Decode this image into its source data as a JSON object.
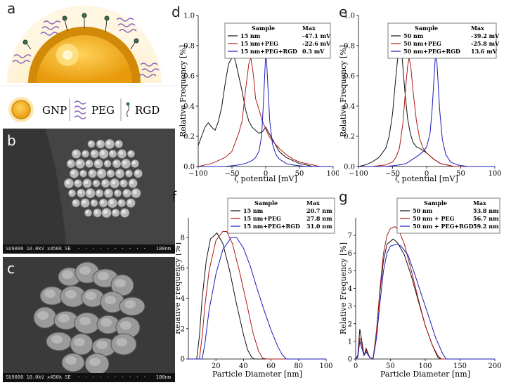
{
  "panel_labels": {
    "a": "a",
    "b": "b",
    "c": "c",
    "d": "d",
    "e": "e",
    "f": "f",
    "g": "g"
  },
  "schematic": {
    "legend": [
      {
        "label": "GNP"
      },
      {
        "label": "PEG"
      },
      {
        "label": "RGD"
      }
    ],
    "colors": {
      "gold": "#f2b21c",
      "gold_dark": "#d08a08",
      "peg": "#8b66b8",
      "glow": "#fbe6b0"
    }
  },
  "sem_images": [
    {
      "caption": "SU9000 10.0kV x450k SE",
      "scale": "100nm"
    },
    {
      "caption": "SU9000 10.0kV x450k SE",
      "scale": "100nm"
    }
  ],
  "chart_data": [
    {
      "id": "d",
      "type": "line",
      "xlabel": "ζ potential [mV]",
      "ylabel": "Relative Frequency [%]",
      "xlim": [
        -100,
        100
      ],
      "ylim": [
        0,
        1.0
      ],
      "xticks": [
        "−100",
        "−50",
        "0",
        "50",
        "100"
      ],
      "yticks": [
        "0.0",
        "0.2",
        "0.4",
        "0.6",
        "0.8",
        "1.0"
      ],
      "legend_header": [
        "Sample",
        "Max"
      ],
      "series": [
        {
          "name": "15 nm",
          "max": "-47.1 mV",
          "color": "#111111",
          "x": [
            -100,
            -95,
            -90,
            -85,
            -80,
            -75,
            -70,
            -65,
            -60,
            -55,
            -50,
            -47,
            -44,
            -40,
            -35,
            -30,
            -25,
            -20,
            -15,
            -10,
            -5,
            0,
            5,
            10,
            15,
            20,
            30,
            40,
            50,
            60,
            70,
            80,
            90,
            100
          ],
          "y": [
            0.14,
            0.2,
            0.26,
            0.29,
            0.26,
            0.24,
            0.3,
            0.4,
            0.55,
            0.68,
            0.72,
            0.73,
            0.68,
            0.6,
            0.5,
            0.38,
            0.3,
            0.26,
            0.24,
            0.22,
            0.23,
            0.26,
            0.22,
            0.18,
            0.14,
            0.1,
            0.06,
            0.04,
            0.02,
            0.01,
            0.0,
            0.0,
            0.0,
            0.0
          ]
        },
        {
          "name": "15 nm+PEG",
          "max": "-22.6 mV",
          "color": "#b01818",
          "x": [
            -100,
            -90,
            -80,
            -70,
            -60,
            -50,
            -45,
            -40,
            -35,
            -30,
            -25,
            -22,
            -18,
            -15,
            -10,
            -5,
            0,
            5,
            10,
            20,
            30,
            40,
            50,
            60,
            70,
            80,
            90,
            100
          ],
          "y": [
            0.0,
            0.01,
            0.02,
            0.04,
            0.06,
            0.1,
            0.16,
            0.22,
            0.3,
            0.5,
            0.68,
            0.72,
            0.6,
            0.45,
            0.38,
            0.3,
            0.25,
            0.2,
            0.17,
            0.12,
            0.08,
            0.05,
            0.03,
            0.02,
            0.01,
            0.0,
            0.0,
            0.0
          ]
        },
        {
          "name": "15 nm+PEG+RGD",
          "max": "0.3 mV",
          "color": "#1a1ab8",
          "x": [
            -100,
            -60,
            -40,
            -30,
            -20,
            -15,
            -10,
            -6,
            -3,
            0,
            0.3,
            3,
            6,
            10,
            15,
            20,
            30,
            40,
            60,
            100
          ],
          "y": [
            0.0,
            0.0,
            0.01,
            0.02,
            0.04,
            0.06,
            0.1,
            0.2,
            0.45,
            0.75,
            0.79,
            0.55,
            0.3,
            0.15,
            0.08,
            0.05,
            0.02,
            0.01,
            0.0,
            0.0
          ]
        }
      ]
    },
    {
      "id": "e",
      "type": "line",
      "xlabel": "ζ potential [mV]",
      "ylabel": "Relative Frequency [%]",
      "xlim": [
        -100,
        100
      ],
      "ylim": [
        0,
        1.0
      ],
      "xticks": [
        "−100",
        "−50",
        "0",
        "50",
        "100"
      ],
      "yticks": [
        "0.0",
        "0.2",
        "0.4",
        "0.6",
        "0.8",
        "1.0"
      ],
      "legend_header": [
        "Sample",
        "Max"
      ],
      "series": [
        {
          "name": "50 nm",
          "max": "-39.2 mV",
          "color": "#111111",
          "x": [
            -100,
            -90,
            -80,
            -70,
            -60,
            -55,
            -50,
            -45,
            -42,
            -39,
            -36,
            -32,
            -28,
            -24,
            -20,
            -15,
            -10,
            0,
            10,
            20,
            30,
            40,
            60,
            100
          ],
          "y": [
            0.0,
            0.01,
            0.03,
            0.06,
            0.12,
            0.2,
            0.35,
            0.6,
            0.74,
            0.8,
            0.72,
            0.5,
            0.32,
            0.22,
            0.16,
            0.13,
            0.12,
            0.09,
            0.05,
            0.02,
            0.01,
            0.0,
            0.0,
            0.0
          ]
        },
        {
          "name": "50 nm+PEG",
          "max": "-25.8 mV",
          "color": "#b01818",
          "x": [
            -100,
            -80,
            -60,
            -50,
            -45,
            -40,
            -35,
            -30,
            -28,
            -25.8,
            -23,
            -20,
            -15,
            -10,
            -5,
            0,
            10,
            20,
            30,
            40,
            60,
            100
          ],
          "y": [
            0.0,
            0.0,
            0.01,
            0.03,
            0.06,
            0.12,
            0.28,
            0.56,
            0.66,
            0.72,
            0.65,
            0.5,
            0.3,
            0.18,
            0.12,
            0.09,
            0.05,
            0.02,
            0.01,
            0.0,
            0.0,
            0.0
          ]
        },
        {
          "name": "50 nm+PEG+RGD",
          "max": "13.6 mV",
          "color": "#1a1ab8",
          "x": [
            -100,
            -60,
            -40,
            -30,
            -20,
            -10,
            -5,
            0,
            5,
            8,
            11,
            13.6,
            16,
            19,
            23,
            28,
            35,
            45,
            60,
            80,
            100
          ],
          "y": [
            0.0,
            0.0,
            0.01,
            0.02,
            0.05,
            0.08,
            0.1,
            0.13,
            0.22,
            0.38,
            0.6,
            0.79,
            0.62,
            0.38,
            0.18,
            0.08,
            0.03,
            0.01,
            0.0,
            0.0,
            0.0
          ]
        }
      ]
    },
    {
      "id": "f",
      "type": "line",
      "xlabel": "Particle Diameter [nm]",
      "ylabel": "Relative Frequency [%]",
      "xlim": [
        0,
        100
      ],
      "ylim": [
        0,
        9.3
      ],
      "xticks": [
        "20",
        "40",
        "60",
        "80",
        "100"
      ],
      "yticks": [
        "0",
        "2",
        "4",
        "6",
        "8"
      ],
      "legend_header": [
        "Sample",
        "Max"
      ],
      "series": [
        {
          "name": "15 nm",
          "max": "20.7 nm",
          "color": "#111111",
          "x": [
            0,
            6,
            8,
            10,
            13,
            16,
            20.7,
            25,
            30,
            35,
            40,
            43,
            46,
            48,
            52,
            100
          ],
          "y": [
            0,
            0,
            1.5,
            4.0,
            6.5,
            7.9,
            8.3,
            7.6,
            5.8,
            3.6,
            1.6,
            0.6,
            0.1,
            0,
            0,
            0
          ]
        },
        {
          "name": "15 nm+PEG",
          "max": "27.8 nm",
          "color": "#b01818",
          "x": [
            0,
            8,
            10,
            12,
            15,
            20,
            25,
            27.8,
            32,
            37,
            42,
            47,
            51,
            54,
            57,
            100
          ],
          "y": [
            0,
            0,
            1.5,
            3.5,
            5.8,
            7.8,
            8.4,
            8.4,
            7.6,
            5.8,
            3.8,
            1.7,
            0.5,
            0.05,
            0,
            0
          ]
        },
        {
          "name": "15 nm+PEG+RGD",
          "max": "31.0 nm",
          "color": "#1a1ab8",
          "x": [
            0,
            10,
            12,
            15,
            20,
            25,
            31,
            35,
            40,
            45,
            50,
            55,
            60,
            65,
            68,
            71,
            100
          ],
          "y": [
            0,
            0,
            1.0,
            3.2,
            5.6,
            7.2,
            8.0,
            8.0,
            7.3,
            6.1,
            4.6,
            3.2,
            1.9,
            0.8,
            0.3,
            0,
            0
          ]
        }
      ]
    },
    {
      "id": "g",
      "type": "line",
      "xlabel": "Particle Diameter [nm]",
      "ylabel": "Relative Frequency [%]",
      "xlim": [
        0,
        200
      ],
      "ylim": [
        0,
        8.0
      ],
      "xticks": [
        "0",
        "50",
        "100",
        "150",
        "200"
      ],
      "yticks": [
        "0",
        "1",
        "2",
        "3",
        "4",
        "5",
        "6",
        "7"
      ],
      "legend_header": [
        "Sample",
        "Max"
      ],
      "series": [
        {
          "name": "50 nm",
          "max": "53.8 nm",
          "color": "#111111",
          "x": [
            0,
            3,
            6,
            9,
            12,
            15,
            20,
            25,
            30,
            35,
            40,
            45,
            53.8,
            60,
            70,
            80,
            90,
            100,
            110,
            118,
            122,
            200
          ],
          "y": [
            0,
            0.2,
            1.7,
            1.0,
            0.2,
            0.6,
            0.1,
            0.0,
            1.6,
            3.8,
            5.6,
            6.5,
            6.8,
            6.6,
            5.9,
            4.7,
            3.3,
            1.9,
            0.8,
            0.1,
            0,
            0
          ]
        },
        {
          "name": "50 nm + PEG",
          "max": "56.7 nm",
          "color": "#b01818",
          "x": [
            0,
            3,
            6,
            9,
            12,
            15,
            20,
            25,
            30,
            35,
            40,
            45,
            50,
            56.7,
            62,
            70,
            80,
            90,
            100,
            110,
            118,
            123,
            200
          ],
          "y": [
            0,
            0.1,
            1.2,
            0.8,
            0.2,
            0.5,
            0.1,
            0.0,
            1.6,
            4.0,
            6.0,
            7.0,
            7.4,
            7.5,
            7.3,
            6.5,
            5.0,
            3.4,
            1.9,
            0.8,
            0.2,
            0,
            0
          ]
        },
        {
          "name": "50 nm + PEG+RGD",
          "max": "59.2 nm",
          "color": "#1a1ab8",
          "x": [
            0,
            3,
            6,
            9,
            12,
            15,
            20,
            25,
            30,
            35,
            40,
            45,
            50,
            59.2,
            65,
            75,
            85,
            95,
            105,
            115,
            125,
            130,
            200
          ],
          "y": [
            0,
            0.1,
            1.0,
            0.6,
            0.2,
            0.4,
            0.1,
            0.0,
            1.2,
            3.2,
            5.0,
            6.0,
            6.4,
            6.5,
            6.4,
            5.9,
            4.8,
            3.6,
            2.4,
            1.2,
            0.3,
            0,
            0
          ]
        }
      ]
    }
  ]
}
